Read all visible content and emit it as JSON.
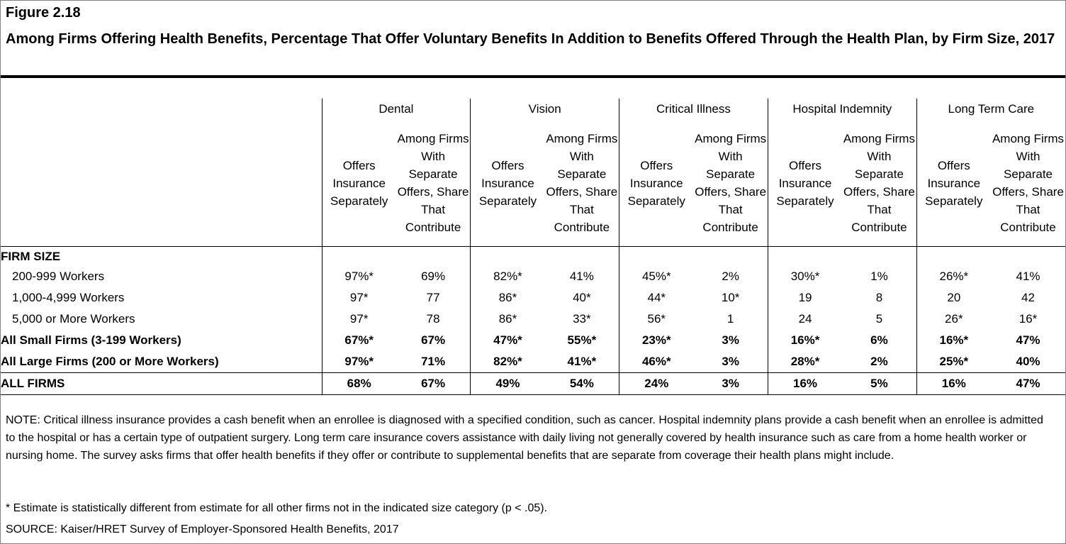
{
  "figure_label": "Figure 2.18",
  "title": "Among Firms Offering Health Benefits, Percentage That Offer Voluntary Benefits In Addition to Benefits Offered Through the Health Plan, by Firm Size, 2017",
  "chart_data": {
    "type": "table",
    "column_groups": [
      "Dental",
      "Vision",
      "Critical Illness",
      "Hospital Indemnity",
      "Long Term Care"
    ],
    "subcolumns": [
      "Offers Insurance Separately",
      "Among Firms With Separate Offers, Share That Contribute"
    ],
    "section_label": "FIRM SIZE",
    "rows": [
      {
        "label": "200-999 Workers",
        "values": [
          "97%*",
          "69%",
          "82%*",
          "41%",
          "45%*",
          "2%",
          "30%*",
          "1%",
          "26%*",
          "41%"
        ]
      },
      {
        "label": "1,000-4,999 Workers",
        "values": [
          "97*",
          "77",
          "86*",
          "40*",
          "44*",
          "10*",
          "19",
          "8",
          "20",
          "42"
        ]
      },
      {
        "label": "5,000 or More Workers",
        "values": [
          "97*",
          "78",
          "86*",
          "33*",
          "56*",
          "1",
          "24",
          "5",
          "26*",
          "16*"
        ]
      },
      {
        "label": "All Small Firms (3-199 Workers)",
        "values": [
          "67%*",
          "67%",
          "47%*",
          "55%*",
          "23%*",
          "3%",
          "16%*",
          "6%",
          "16%*",
          "47%"
        ]
      },
      {
        "label": "All Large Firms (200 or More Workers)",
        "values": [
          "97%*",
          "71%",
          "82%*",
          "41%*",
          "46%*",
          "3%",
          "28%*",
          "2%",
          "25%*",
          "40%"
        ]
      },
      {
        "label": "ALL FIRMS",
        "values": [
          "68%",
          "67%",
          "49%",
          "54%",
          "24%",
          "3%",
          "16%",
          "5%",
          "16%",
          "47%"
        ]
      }
    ]
  },
  "note": "NOTE: Critical illness insurance provides a cash benefit when an enrollee is diagnosed with a specified condition, such as cancer. Hospital indemnity plans provide a cash benefit when an enrollee is admitted to the hospital or has a certain type of outpatient surgery. Long term care insurance covers assistance with daily living not generally covered by health insurance such as care from a home health worker or nursing home. The survey asks firms that offer health benefits if they offer or contribute to supplemental benefits that are separate from coverage their health plans might include.",
  "footnote": "* Estimate is statistically different from estimate for all other firms not in the indicated size category (p < .05).",
  "source": "SOURCE: Kaiser/HRET Survey of Employer-Sponsored Health Benefits, 2017"
}
